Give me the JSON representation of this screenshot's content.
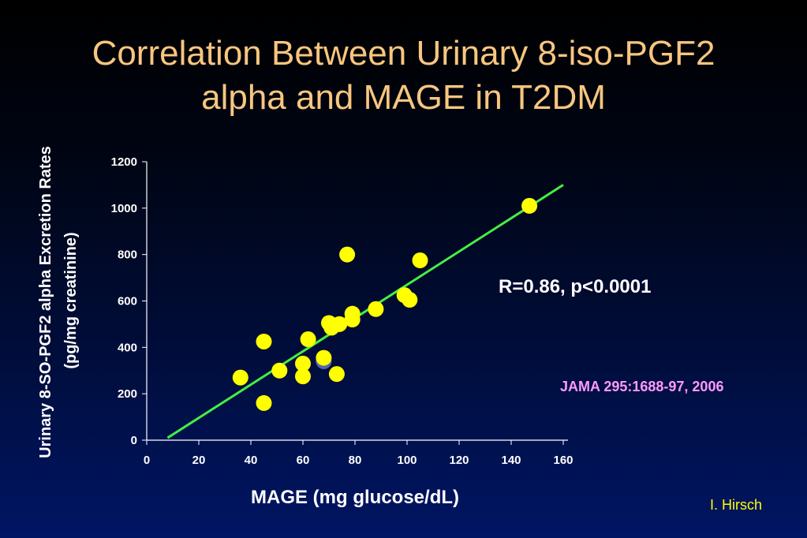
{
  "slide": {
    "title_line1": "Correlation Between Urinary 8-iso-PGF2",
    "title_line2": "alpha and MAGE in T2DM",
    "credit": "I. Hirsch"
  },
  "chart_data": {
    "type": "scatter",
    "xlabel": "MAGE (mg glucose/dL)",
    "ylabel_line1": "Urinary 8-SO-PGF2 alpha Excretion Rates",
    "ylabel_line2": "(pg/mg creatinine)",
    "xlim": [
      0,
      160
    ],
    "ylim": [
      0,
      1200
    ],
    "x_ticks": [
      0,
      20,
      40,
      60,
      80,
      100,
      120,
      140,
      160
    ],
    "y_ticks": [
      0,
      200,
      400,
      600,
      800,
      1000,
      1200
    ],
    "grid": false,
    "annotations": {
      "stats": "R=0.86, p<0.0001",
      "citation": "JAMA 295:1688-97, 2006"
    },
    "colors": {
      "points": "#ffff00",
      "fit_line": "#44ee44",
      "hidden_point": "#5566aa",
      "axis": "#ffffff"
    },
    "hidden_point": {
      "x": 68,
      "y": 340
    },
    "points": [
      {
        "x": 36,
        "y": 270
      },
      {
        "x": 45,
        "y": 160
      },
      {
        "x": 45,
        "y": 425
      },
      {
        "x": 51,
        "y": 300
      },
      {
        "x": 60,
        "y": 275
      },
      {
        "x": 60,
        "y": 330
      },
      {
        "x": 62,
        "y": 435
      },
      {
        "x": 68,
        "y": 355
      },
      {
        "x": 70,
        "y": 505
      },
      {
        "x": 71,
        "y": 485
      },
      {
        "x": 73,
        "y": 285
      },
      {
        "x": 74,
        "y": 500
      },
      {
        "x": 77,
        "y": 800
      },
      {
        "x": 79,
        "y": 520
      },
      {
        "x": 79,
        "y": 545
      },
      {
        "x": 88,
        "y": 565
      },
      {
        "x": 99,
        "y": 625
      },
      {
        "x": 101,
        "y": 605
      },
      {
        "x": 105,
        "y": 775
      },
      {
        "x": 147,
        "y": 1010
      }
    ],
    "fit_line": {
      "x1": 8,
      "y1": 10,
      "x2": 160,
      "y2": 1100
    }
  }
}
